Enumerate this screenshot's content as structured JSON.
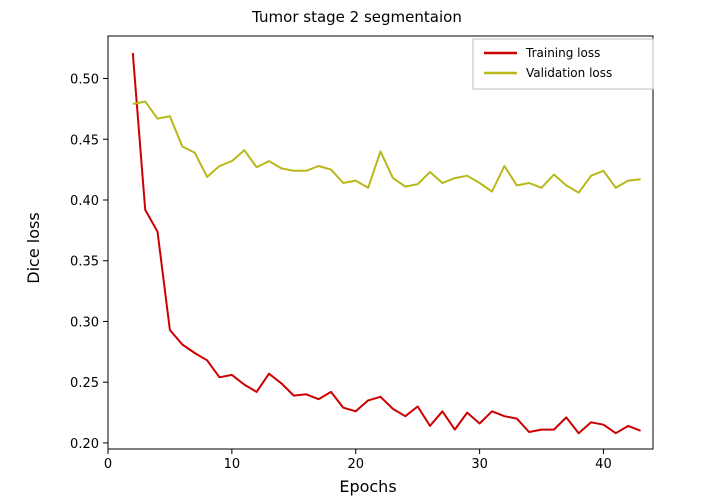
{
  "chart_data": {
    "type": "line",
    "title": "Tumor stage 2 segmentaion",
    "xlabel": "Epochs",
    "ylabel": "Dice loss",
    "xlim": [
      0,
      44
    ],
    "ylim": [
      0.195,
      0.535
    ],
    "xticks": [
      0,
      10,
      20,
      30,
      40
    ],
    "yticks": [
      0.2,
      0.25,
      0.3,
      0.35,
      0.4,
      0.45,
      0.5
    ],
    "xtick_labels": [
      "0",
      "10",
      "20",
      "30",
      "40"
    ],
    "ytick_labels": [
      "0.20",
      "0.25",
      "0.30",
      "0.35",
      "0.40",
      "0.45",
      "0.50"
    ],
    "grid": false,
    "legend_position": "top-right",
    "x": [
      2,
      3,
      4,
      5,
      6,
      7,
      8,
      9,
      10,
      11,
      12,
      13,
      14,
      15,
      16,
      17,
      18,
      19,
      20,
      21,
      22,
      23,
      24,
      25,
      26,
      27,
      28,
      29,
      30,
      31,
      32,
      33,
      34,
      35,
      36,
      37,
      38,
      39,
      40,
      41,
      42,
      43
    ],
    "series": [
      {
        "name": "Training loss",
        "color": "#cc0000",
        "values": [
          0.521,
          0.392,
          0.374,
          0.293,
          0.281,
          0.274,
          0.268,
          0.254,
          0.256,
          0.248,
          0.242,
          0.257,
          0.249,
          0.239,
          0.24,
          0.236,
          0.242,
          0.229,
          0.226,
          0.235,
          0.238,
          0.228,
          0.222,
          0.23,
          0.214,
          0.226,
          0.211,
          0.225,
          0.216,
          0.226,
          0.222,
          0.22,
          0.209,
          0.211,
          0.211,
          0.221,
          0.208,
          0.217,
          0.215,
          0.208,
          0.214,
          0.21
        ]
      },
      {
        "name": "Validation loss",
        "color": "#b8b81a",
        "values": [
          0.479,
          0.481,
          0.467,
          0.469,
          0.444,
          0.439,
          0.419,
          0.428,
          0.432,
          0.441,
          0.427,
          0.432,
          0.426,
          0.424,
          0.424,
          0.428,
          0.425,
          0.414,
          0.416,
          0.41,
          0.44,
          0.418,
          0.411,
          0.413,
          0.423,
          0.414,
          0.418,
          0.42,
          0.414,
          0.407,
          0.428,
          0.412,
          0.414,
          0.41,
          0.421,
          0.412,
          0.406,
          0.42,
          0.424,
          0.41,
          0.416,
          0.417
        ]
      }
    ]
  }
}
